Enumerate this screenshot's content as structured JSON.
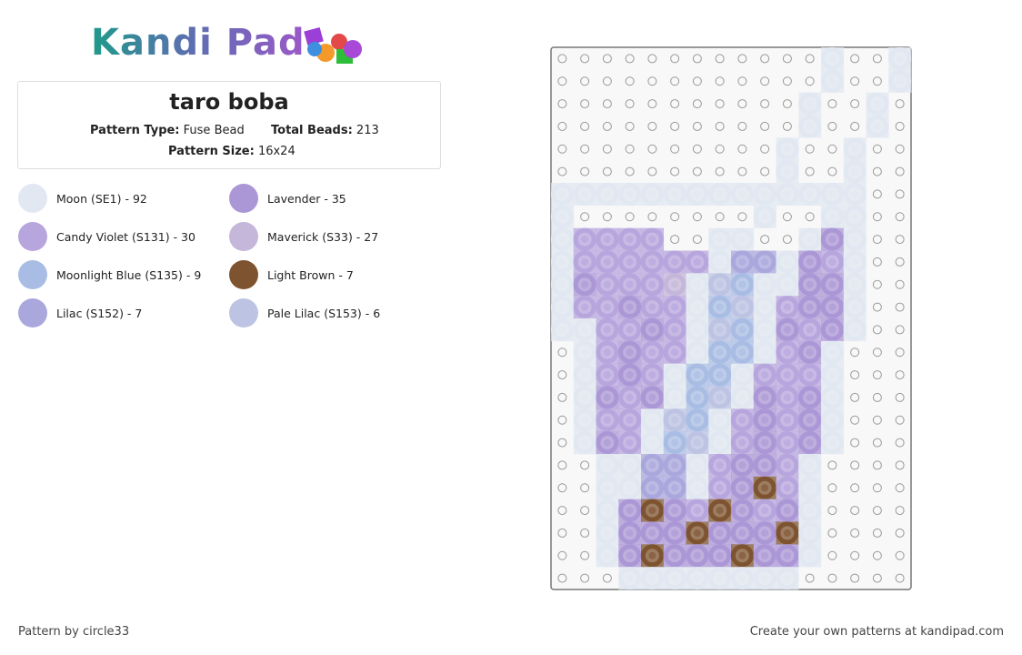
{
  "logo": "Kandi Pad",
  "header": {
    "title": "taro boba",
    "type_label": "Pattern Type:",
    "type_value": "Fuse Bead",
    "beads_label": "Total Beads:",
    "beads_value": "213",
    "size_label": "Pattern Size:",
    "size_value": "16x24"
  },
  "legend": [
    {
      "label": "Moon (SE1) - 92",
      "color": "#e2e8f1"
    },
    {
      "label": "Lavender - 35",
      "color": "#ab97d6"
    },
    {
      "label": "Candy Violet (S131) - 30",
      "color": "#b7a5dd"
    },
    {
      "label": "Maverick (S33) - 27",
      "color": "#c4b7da"
    },
    {
      "label": "Moonlight Blue (S135) - 9",
      "color": "#a9bde4"
    },
    {
      "label": "Light Brown - 7",
      "color": "#7e5430"
    },
    {
      "label": "Lilac (S152) - 7",
      "color": "#aaa7dd"
    },
    {
      "label": "Pale Lilac (S153) - 6",
      "color": "#bcc3e3"
    }
  ],
  "pattern": {
    "rows": [
      "............0..0",
      "............0..0",
      "...........0..0.",
      "...........0..0.",
      "..........0..0..",
      "..........0..0..",
      "00000000000000..",
      "0........0..00..",
      "02222..00..010..",
      "02222220660120..",
      "01222307400110..",
      "02212204702110..",
      "00221207401210..",
      ".021220440210...",
      ".021204402220...",
      ".012104701210...",
      ".022074021210...",
      ".012047021210...",
      "..0066021120....",
      "..0066021520....",
      "..0151251210....",
      "..0111511150....",
      "..0151115110....",
      "...00000000....."
    ]
  },
  "footer": {
    "credit": "Pattern by circle33",
    "promo": "Create your own patterns at kandipad.com"
  }
}
